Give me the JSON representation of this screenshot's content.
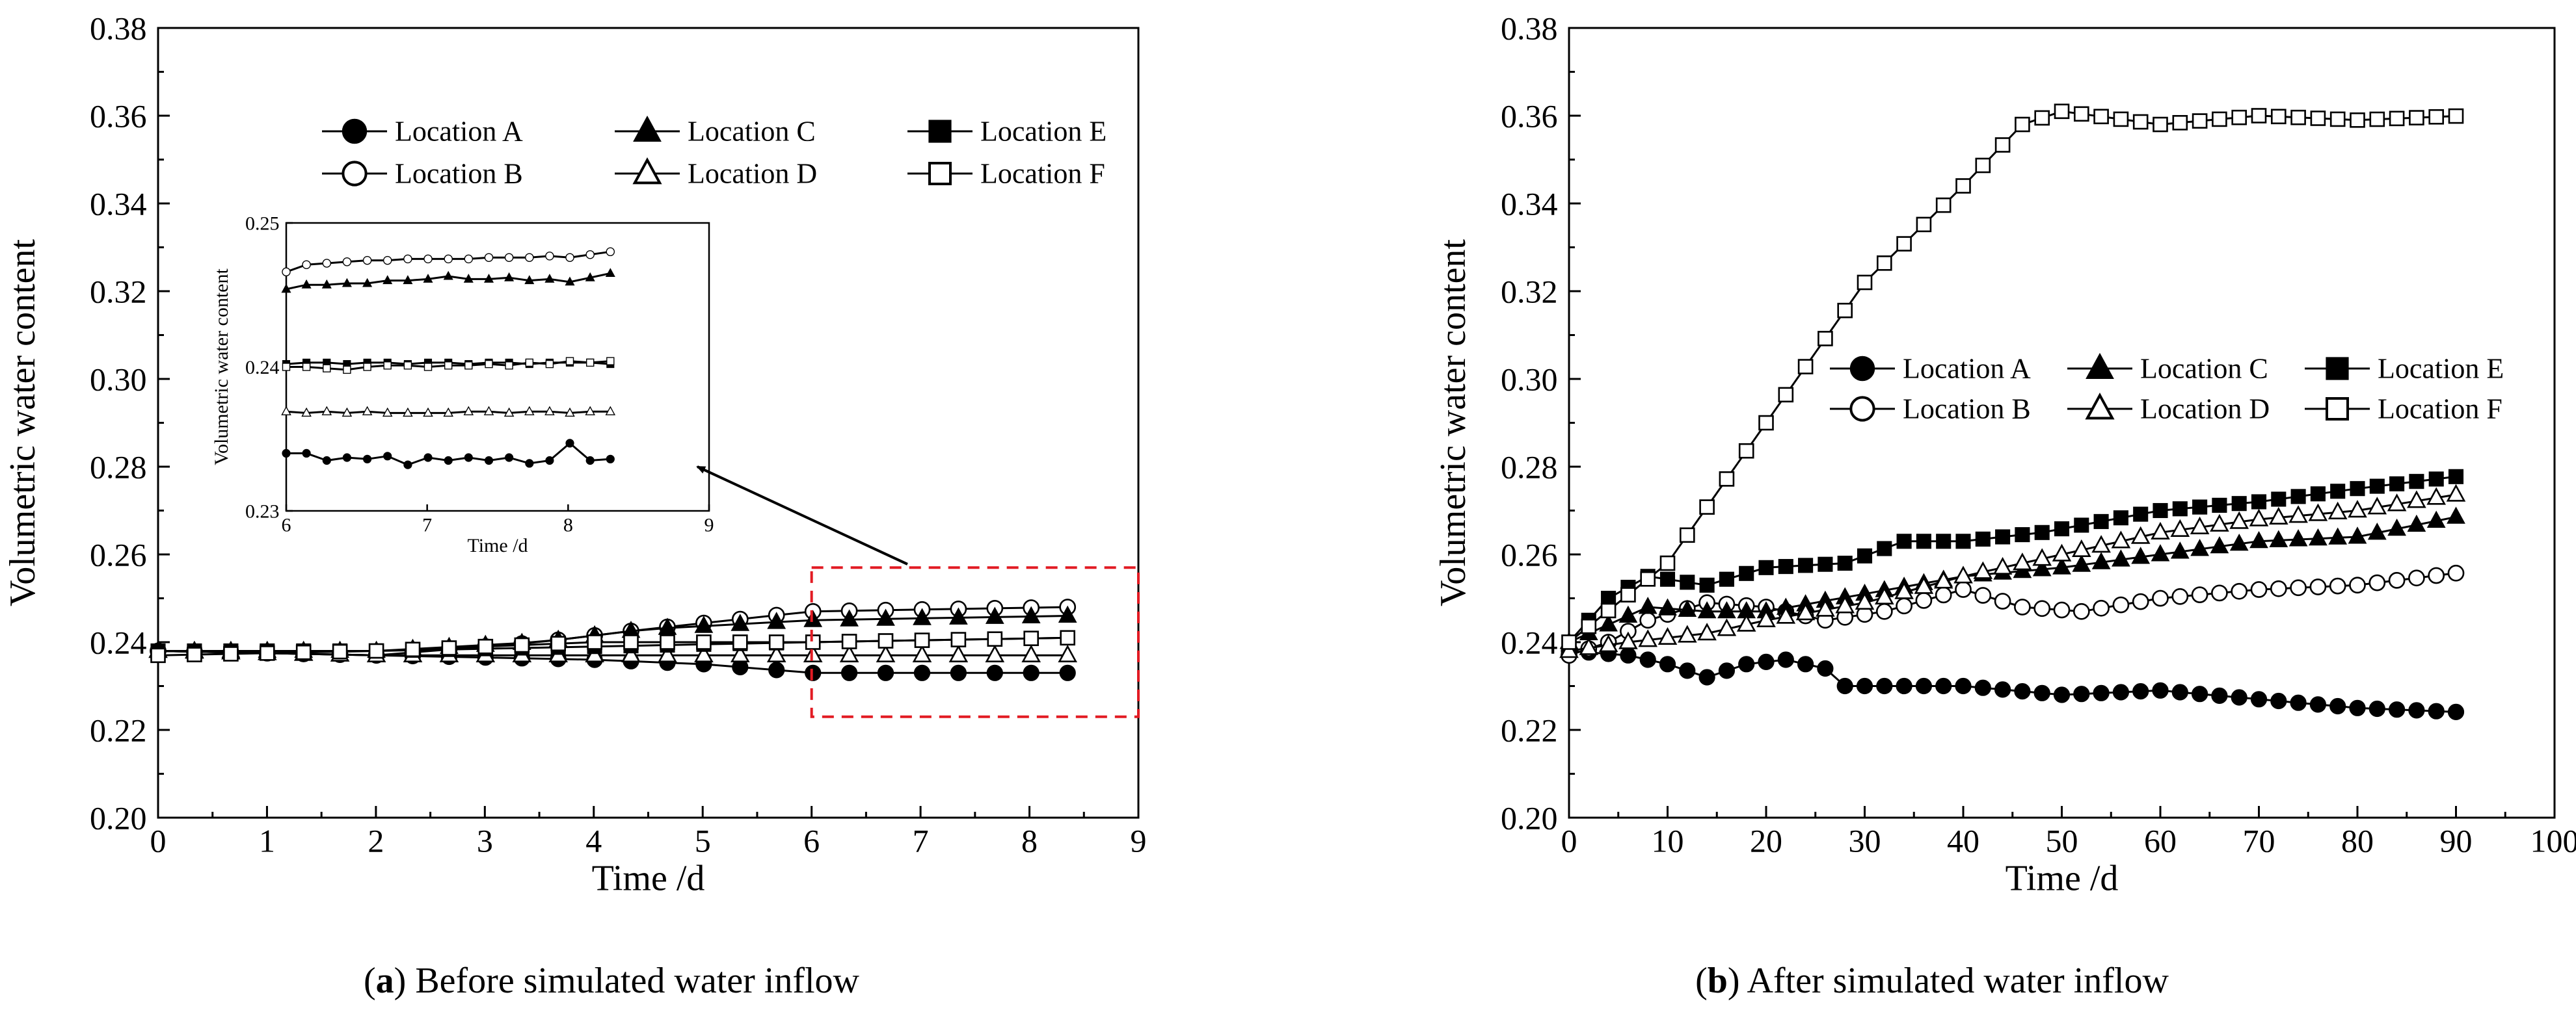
{
  "chart_data": [
    {
      "type": "line",
      "panel": "a",
      "caption_label": "a",
      "caption_text": " Before simulated water inflow",
      "xlabel": "Time /d",
      "ylabel": "Volumetric water content",
      "xlim": [
        0,
        9
      ],
      "ylim": [
        0.2,
        0.38
      ],
      "xticks": [
        "0",
        "1",
        "2",
        "3",
        "4",
        "5",
        "6",
        "7",
        "8",
        "9"
      ],
      "yticks": [
        "0.20",
        "0.22",
        "0.24",
        "0.26",
        "0.28",
        "0.30",
        "0.32",
        "0.34",
        "0.36",
        "0.38"
      ],
      "grid": false,
      "legend_position": "top-center",
      "highlight_region": {
        "x": [
          6,
          9
        ],
        "y": [
          0.223,
          0.257
        ]
      },
      "series": [
        {
          "name": "Location A",
          "marker": "filled-circle",
          "x_start": 0,
          "x_end": 8.35,
          "points": 26,
          "values_keypoints": [
            [
              0,
              0.238
            ],
            [
              2,
              0.237
            ],
            [
              4,
              0.236
            ],
            [
              5,
              0.235
            ],
            [
              6,
              0.233
            ],
            [
              8.35,
              0.233
            ]
          ]
        },
        {
          "name": "Location B",
          "marker": "open-circle",
          "x_start": 0,
          "x_end": 8.35,
          "points": 26,
          "values_keypoints": [
            [
              0,
              0.238
            ],
            [
              2,
              0.237
            ],
            [
              3.5,
              0.24
            ],
            [
              4.5,
              0.243
            ],
            [
              6,
              0.247
            ],
            [
              8.35,
              0.248
            ]
          ]
        },
        {
          "name": "Location C",
          "marker": "filled-triangle",
          "x_start": 0,
          "x_end": 8.35,
          "points": 26,
          "values_keypoints": [
            [
              0,
              0.238
            ],
            [
              2,
              0.238
            ],
            [
              3.5,
              0.24
            ],
            [
              4.5,
              0.243
            ],
            [
              6,
              0.245
            ],
            [
              8.35,
              0.246
            ]
          ]
        },
        {
          "name": "Location D",
          "marker": "open-triangle",
          "x_start": 0,
          "x_end": 8.35,
          "points": 26,
          "values_keypoints": [
            [
              0,
              0.238
            ],
            [
              2,
              0.237
            ],
            [
              4,
              0.237
            ],
            [
              6,
              0.237
            ],
            [
              8.35,
              0.237
            ]
          ]
        },
        {
          "name": "Location E",
          "marker": "filled-square",
          "x_start": 0,
          "x_end": 8.35,
          "points": 26,
          "values_keypoints": [
            [
              0,
              0.238
            ],
            [
              2,
              0.238
            ],
            [
              4,
              0.239
            ],
            [
              6,
              0.24
            ],
            [
              8.35,
              0.241
            ]
          ]
        },
        {
          "name": "Location F",
          "marker": "open-square",
          "x_start": 0,
          "x_end": 8.35,
          "points": 26,
          "values_keypoints": [
            [
              0,
              0.237
            ],
            [
              2,
              0.238
            ],
            [
              4,
              0.24
            ],
            [
              6,
              0.24
            ],
            [
              8.35,
              0.241
            ]
          ]
        }
      ],
      "inset": {
        "xlabel": "Time /d",
        "ylabel": "Volumetric water content",
        "xlim": [
          6,
          9
        ],
        "ylim": [
          0.23,
          0.25
        ],
        "xticks": [
          "6",
          "7",
          "8",
          "9"
        ],
        "yticks": [
          "0.23",
          "0.24",
          "0.25"
        ],
        "series": [
          {
            "name": "Location A",
            "marker": "filled-circle",
            "values": [
              0.234,
              0.234,
              0.2335,
              0.2337,
              0.2336,
              0.2338,
              0.2332,
              0.2337,
              0.2335,
              0.2337,
              0.2335,
              0.2337,
              0.2333,
              0.2335,
              0.2347,
              0.2335,
              0.2336
            ]
          },
          {
            "name": "Location B",
            "marker": "open-circle",
            "values": [
              0.2466,
              0.2471,
              0.2472,
              0.2473,
              0.2474,
              0.2474,
              0.2475,
              0.2475,
              0.2475,
              0.2475,
              0.2476,
              0.2476,
              0.2476,
              0.2477,
              0.2476,
              0.2478,
              0.248
            ]
          },
          {
            "name": "Location C",
            "marker": "filled-triangle",
            "values": [
              0.2454,
              0.2457,
              0.2457,
              0.2458,
              0.2458,
              0.246,
              0.246,
              0.2461,
              0.2463,
              0.2461,
              0.2461,
              0.2462,
              0.246,
              0.2461,
              0.2459,
              0.2462,
              0.2465
            ]
          },
          {
            "name": "Location D",
            "marker": "open-triangle",
            "values": [
              0.2369,
              0.2368,
              0.2369,
              0.2368,
              0.2369,
              0.2368,
              0.2368,
              0.2368,
              0.2368,
              0.2369,
              0.2369,
              0.2368,
              0.2369,
              0.2369,
              0.2368,
              0.2369,
              0.2369
            ]
          },
          {
            "name": "Location E",
            "marker": "filled-square",
            "values": [
              0.2402,
              0.2403,
              0.2403,
              0.2402,
              0.2403,
              0.2403,
              0.2402,
              0.2403,
              0.2403,
              0.2402,
              0.2403,
              0.2403,
              0.2402,
              0.2403,
              0.2403,
              0.2403,
              0.2402
            ]
          },
          {
            "name": "Location F",
            "marker": "open-square",
            "values": [
              0.24,
              0.24,
              0.2399,
              0.2398,
              0.24,
              0.2401,
              0.2401,
              0.24,
              0.2401,
              0.2401,
              0.2402,
              0.2401,
              0.2403,
              0.2402,
              0.2404,
              0.2403,
              0.2404
            ]
          }
        ]
      }
    },
    {
      "type": "line",
      "panel": "b",
      "caption_label": "b",
      "caption_text": " After simulated water inflow",
      "xlabel": "Time /d",
      "ylabel": "Volumetric water content",
      "xlim": [
        0,
        100
      ],
      "ylim": [
        0.2,
        0.38
      ],
      "xticks": [
        "0",
        "10",
        "20",
        "30",
        "40",
        "50",
        "60",
        "70",
        "80",
        "90",
        "100"
      ],
      "yticks": [
        "0.20",
        "0.22",
        "0.24",
        "0.26",
        "0.28",
        "0.30",
        "0.32",
        "0.34",
        "0.36",
        "0.38"
      ],
      "grid": false,
      "legend_position": "center-right",
      "series": [
        {
          "name": "Location A",
          "marker": "filled-circle",
          "x_start": 0,
          "x_end": 91,
          "step": 2,
          "values_keypoints": [
            [
              0,
              0.238
            ],
            [
              6,
              0.237
            ],
            [
              10,
              0.235
            ],
            [
              14,
              0.232
            ],
            [
              18,
              0.235
            ],
            [
              22,
              0.236
            ],
            [
              26,
              0.234
            ],
            [
              28,
              0.23
            ],
            [
              40,
              0.23
            ],
            [
              50,
              0.228
            ],
            [
              60,
              0.229
            ],
            [
              70,
              0.227
            ],
            [
              80,
              0.225
            ],
            [
              91,
              0.224
            ]
          ]
        },
        {
          "name": "Location B",
          "marker": "open-circle",
          "x_start": 0,
          "x_end": 91,
          "step": 2,
          "values_keypoints": [
            [
              0,
              0.237
            ],
            [
              4,
              0.24
            ],
            [
              8,
              0.245
            ],
            [
              14,
              0.249
            ],
            [
              20,
              0.248
            ],
            [
              26,
              0.245
            ],
            [
              32,
              0.247
            ],
            [
              40,
              0.252
            ],
            [
              46,
              0.248
            ],
            [
              52,
              0.247
            ],
            [
              60,
              0.25
            ],
            [
              70,
              0.252
            ],
            [
              80,
              0.253
            ],
            [
              91,
              0.256
            ]
          ]
        },
        {
          "name": "Location C",
          "marker": "filled-triangle",
          "x_start": 0,
          "x_end": 91,
          "step": 2,
          "values_keypoints": [
            [
              0,
              0.24
            ],
            [
              4,
              0.244
            ],
            [
              8,
              0.248
            ],
            [
              14,
              0.247
            ],
            [
              20,
              0.247
            ],
            [
              30,
              0.251
            ],
            [
              40,
              0.255
            ],
            [
              50,
              0.257
            ],
            [
              60,
              0.26
            ],
            [
              70,
              0.263
            ],
            [
              80,
              0.264
            ],
            [
              91,
              0.269
            ]
          ]
        },
        {
          "name": "Location D",
          "marker": "open-triangle",
          "x_start": 0,
          "x_end": 91,
          "step": 2,
          "values_keypoints": [
            [
              0,
              0.238
            ],
            [
              6,
              0.24
            ],
            [
              14,
              0.242
            ],
            [
              20,
              0.245
            ],
            [
              30,
              0.249
            ],
            [
              40,
              0.255
            ],
            [
              50,
              0.26
            ],
            [
              60,
              0.265
            ],
            [
              70,
              0.268
            ],
            [
              80,
              0.27
            ],
            [
              91,
              0.274
            ]
          ]
        },
        {
          "name": "Location E",
          "marker": "filled-square",
          "x_start": 0,
          "x_end": 91,
          "step": 2,
          "values_keypoints": [
            [
              0,
              0.24
            ],
            [
              4,
              0.25
            ],
            [
              8,
              0.255
            ],
            [
              14,
              0.253
            ],
            [
              20,
              0.257
            ],
            [
              28,
              0.258
            ],
            [
              34,
              0.263
            ],
            [
              40,
              0.263
            ],
            [
              48,
              0.265
            ],
            [
              60,
              0.27
            ],
            [
              70,
              0.272
            ],
            [
              80,
              0.275
            ],
            [
              91,
              0.278
            ]
          ]
        },
        {
          "name": "Location F",
          "marker": "open-square",
          "x_start": 0,
          "x_end": 91,
          "step": 2,
          "values_keypoints": [
            [
              0,
              0.24
            ],
            [
              10,
              0.258
            ],
            [
              20,
              0.29
            ],
            [
              30,
              0.322
            ],
            [
              40,
              0.344
            ],
            [
              46,
              0.358
            ],
            [
              50,
              0.361
            ],
            [
              60,
              0.358
            ],
            [
              70,
              0.36
            ],
            [
              80,
              0.359
            ],
            [
              91,
              0.36
            ]
          ]
        }
      ]
    }
  ]
}
